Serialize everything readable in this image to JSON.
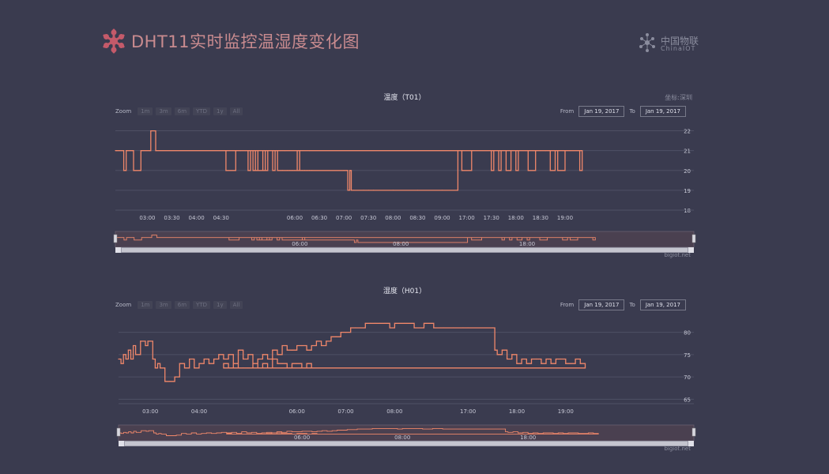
{
  "page": {
    "title": "DHT11实时监控温湿度变化图",
    "brand_cn": "中国物联",
    "brand_en": "ChinaIOT",
    "colors": {
      "background": "#3a3b4f",
      "line": "#f0876a",
      "accent": "#c45a6a",
      "grid": "#4e5064"
    }
  },
  "charts": [
    {
      "title": "温度（T01）",
      "subtitle": "坐标:深圳",
      "zoom": {
        "label": "Zoom",
        "buttons": [
          "1m",
          "3m",
          "6m",
          "YTD",
          "1y",
          "All"
        ]
      },
      "range": {
        "from_label": "From",
        "from": "Jan 19, 2017",
        "to_label": "To",
        "to": "Jan 19, 2017"
      },
      "credit": "bigiot.net",
      "navigator_ticks": [
        {
          "x": 6.0,
          "label": "06:00"
        },
        {
          "x": 8.0,
          "label": "08:00"
        },
        {
          "x": 18.0,
          "label": "18:00"
        }
      ]
    },
    {
      "title": "湿度（H01）",
      "subtitle": "",
      "zoom": {
        "label": "Zoom",
        "buttons": [
          "1m",
          "3m",
          "6m",
          "YTD",
          "1y",
          "All"
        ]
      },
      "range": {
        "from_label": "From",
        "from": "Jan 19, 2017",
        "to_label": "To",
        "to": "Jan 19, 2017"
      },
      "credit": "bigiot.net",
      "navigator_ticks": [
        {
          "x": 6.0,
          "label": "06:00"
        },
        {
          "x": 8.0,
          "label": "08:00"
        },
        {
          "x": 18.0,
          "label": "18:00"
        }
      ]
    }
  ],
  "chart_data": [
    {
      "type": "line",
      "title": "温度（T01）",
      "x_unit": "hour of day (Jan 19, 2017; axis has a break between 09:30 and 17:00)",
      "x_ticks": [
        "03:00",
        "03:30",
        "04:00",
        "04:30",
        "06:00",
        "06:30",
        "07:00",
        "07:30",
        "08:00",
        "08:30",
        "09:00",
        "17:00",
        "17:30",
        "18:00",
        "18:30",
        "19:00"
      ],
      "y_ticks": [
        18,
        19,
        20,
        21,
        22
      ],
      "ylim": [
        18,
        22.5
      ],
      "grid": true,
      "x": [
        2.35,
        2.5,
        2.52,
        2.55,
        2.57,
        2.7,
        2.72,
        2.85,
        2.87,
        3.05,
        3.07,
        3.15,
        3.17,
        4.8,
        5.0,
        5.05,
        5.1,
        5.2,
        5.25,
        5.35,
        5.45,
        5.55,
        5.6,
        5.65,
        5.75,
        5.85,
        5.9,
        5.95,
        6.0,
        6.05,
        6.1,
        6.15,
        6.2,
        6.25,
        6.3,
        6.35,
        7.0,
        7.05,
        7.08,
        7.1,
        7.12,
        7.15,
        7.2,
        7.4,
        7.5,
        7.6,
        8.0,
        8.5,
        9.0,
        9.3,
        9.32,
        9.4,
        9.6,
        10.0,
        10.05,
        10.15,
        10.2,
        10.3,
        10.4,
        10.5,
        10.55,
        10.7,
        10.75,
        10.9,
        11.0,
        11.1,
        11.2,
        11.3,
        11.35,
        11.5,
        11.6,
        11.8,
        11.85,
        12.0,
        12.1,
        12.3,
        12.4,
        12.6,
        12.65,
        12.9,
        13.0,
        13.2,
        13.3,
        13.55,
        13.6,
        13.8
      ],
      "y": [
        21,
        21,
        20,
        20,
        21,
        21,
        20,
        20,
        21,
        21,
        22,
        22,
        21,
        21,
        21,
        20,
        21,
        20,
        21,
        20,
        21,
        20,
        21,
        20,
        20,
        20,
        20,
        20,
        20,
        20,
        20,
        20,
        20,
        20,
        20,
        20,
        20,
        20,
        19,
        19,
        20,
        19,
        19,
        19,
        19,
        19,
        19,
        19,
        19,
        19,
        21,
        20,
        21,
        20,
        21,
        20,
        21,
        20,
        21,
        20,
        21,
        21,
        20,
        21,
        21,
        21,
        20,
        21,
        20,
        21,
        21,
        20,
        21,
        21,
        20,
        21,
        21,
        21,
        20,
        21,
        21,
        21,
        21,
        20,
        21,
        21
      ],
      "series": [
        {
          "values_ref": "y"
        }
      ]
    },
    {
      "type": "line",
      "title": "湿度（H01）",
      "x_unit": "hour of day (Jan 19, 2017; axis has a break between 09:30 and 17:00)",
      "x_ticks": [
        "03:00",
        "04:00",
        "06:00",
        "07:00",
        "08:00",
        "17:00",
        "18:00",
        "19:00"
      ],
      "y_ticks": [
        65,
        70,
        75,
        80
      ],
      "ylim": [
        64,
        84
      ],
      "grid": true,
      "x": [
        2.35,
        2.4,
        2.45,
        2.5,
        2.55,
        2.6,
        2.65,
        2.7,
        2.8,
        2.9,
        2.95,
        3.0,
        3.05,
        3.1,
        3.15,
        3.2,
        3.3,
        3.4,
        3.5,
        3.6,
        3.7,
        3.8,
        3.9,
        4.0,
        4.1,
        4.2,
        4.3,
        4.4,
        4.5,
        4.6,
        4.7,
        4.8,
        4.9,
        5.0,
        5.1,
        5.2,
        5.3,
        5.4,
        5.5,
        5.6,
        5.7,
        5.8,
        5.9,
        6.0,
        6.1,
        6.2,
        6.3,
        6.4,
        6.5,
        6.6,
        6.7,
        6.8,
        6.9,
        7.0,
        7.1,
        7.2,
        7.3,
        7.4,
        7.5,
        7.6,
        7.7,
        7.8,
        7.9,
        8.0,
        8.2,
        8.4,
        8.6,
        8.8,
        9.0,
        9.2,
        9.4,
        9.5,
        10.0,
        10.05,
        10.1,
        10.2,
        10.3,
        10.4,
        10.5,
        10.6,
        10.7,
        10.8,
        10.9,
        11.0,
        11.1,
        11.2,
        11.3,
        11.4,
        11.5,
        11.6,
        11.7,
        11.8,
        11.9,
        12.0,
        12.1,
        12.2,
        12.3,
        12.4,
        12.5,
        12.6,
        12.7,
        12.8,
        12.9,
        13.0,
        13.1,
        13.2,
        13.3,
        13.4,
        13.5,
        13.6,
        13.7,
        13.8
      ],
      "y": [
        74,
        73,
        75,
        74,
        76,
        74,
        77,
        75,
        78,
        77,
        78,
        78,
        74,
        72,
        73,
        72,
        69,
        69,
        70,
        73,
        72,
        74,
        72,
        73,
        74,
        73,
        74,
        75,
        74,
        75,
        73,
        76,
        74,
        75,
        73,
        74,
        75,
        74,
        76,
        75,
        77,
        76,
        76,
        77,
        77,
        76,
        77,
        78,
        77,
        78,
        79,
        79,
        80,
        80,
        81,
        81,
        81,
        82,
        82,
        82,
        82,
        82,
        81,
        82,
        82,
        81,
        82,
        81,
        81,
        81,
        81,
        81,
        81,
        76,
        75,
        76,
        74,
        75,
        73,
        74,
        73,
        74,
        74,
        73,
        74,
        73,
        74,
        74,
        73,
        73,
        74,
        73,
        72,
        73,
        72,
        73,
        72,
        72,
        72,
        73,
        72,
        73,
        72,
        74,
        73,
        73,
        72,
        73,
        73,
        72,
        73,
        72
      ]
    }
  ]
}
